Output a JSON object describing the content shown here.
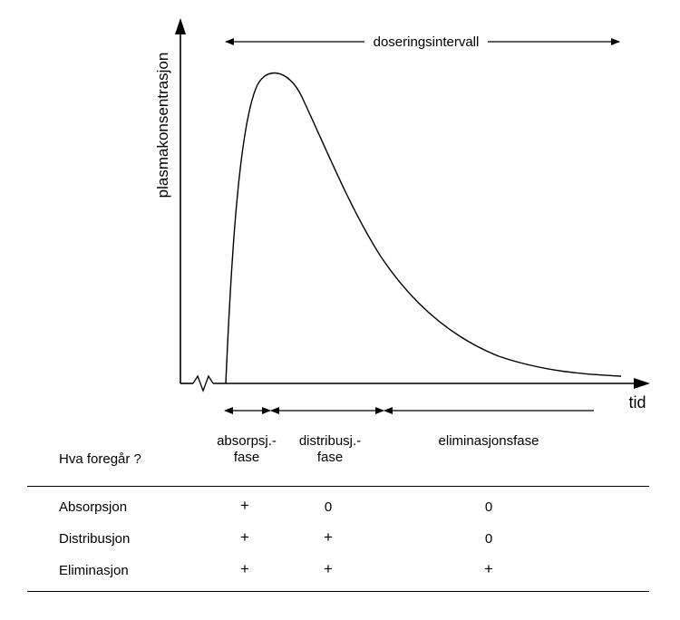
{
  "diagram": {
    "y_axis_label": "plasmakonsentrasjon",
    "x_axis_label": "tid",
    "dosing_interval_label": "doseringsintervall"
  },
  "phases": [
    {
      "line1": "absorpsj.-",
      "line2": "fase"
    },
    {
      "line1": "distribusj.-",
      "line2": "fase"
    },
    {
      "line1": "eliminasjonsfase",
      "line2": ""
    }
  ],
  "table": {
    "question": "Hva foregår ?",
    "rows": [
      {
        "label": "Absorpsjon",
        "values": [
          "+",
          "0",
          "0"
        ]
      },
      {
        "label": "Distribusjon",
        "values": [
          "+",
          "+",
          "0"
        ]
      },
      {
        "label": "Eliminasjon",
        "values": [
          "+",
          "+",
          "+"
        ]
      }
    ]
  }
}
